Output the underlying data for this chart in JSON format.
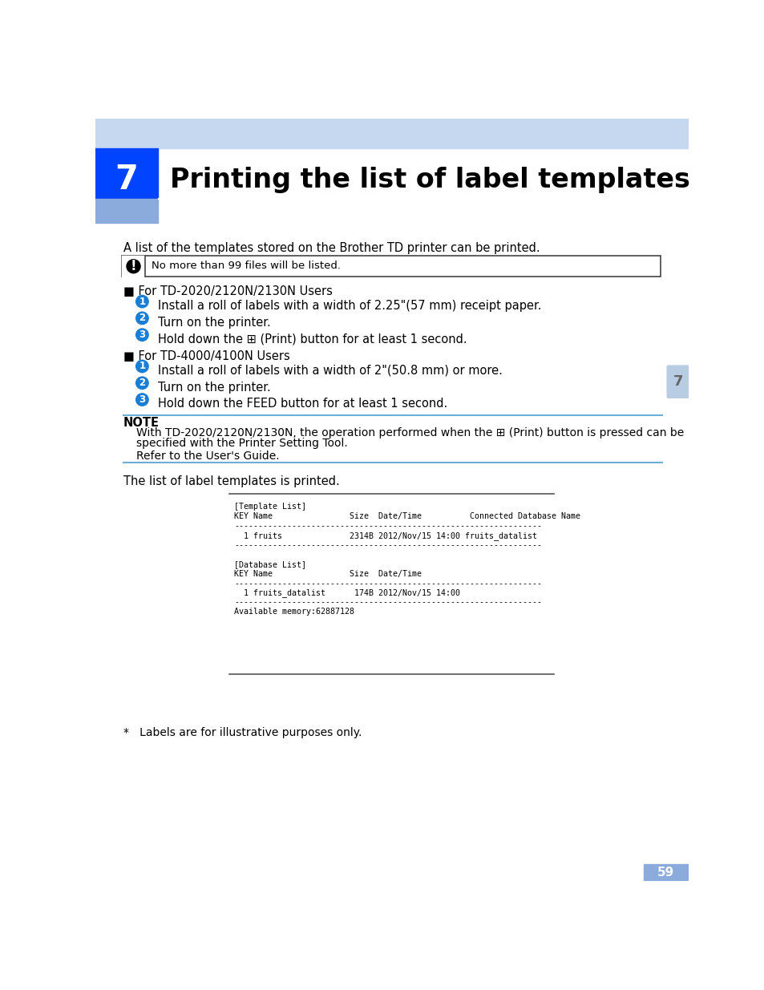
{
  "page_bg": "#ffffff",
  "header_bar_color": "#c5d8f0",
  "header_blue_square": "#0044ff",
  "header_light_square": "#8aabdb",
  "chapter_number": "7",
  "chapter_title": "Printing the list of label templates",
  "intro_text": "A list of the templates stored on the Brother TD printer can be printed.",
  "note_box_text": "No more than 99 files will be listed.",
  "section1_header": "■ For TD-2020/2120N/2130N Users",
  "section1_steps": [
    "Install a roll of labels with a width of 2.25\"(57 mm) receipt paper.",
    "Turn on the printer.",
    "Hold down the ⊞ (Print) button for at least 1 second."
  ],
  "section2_header": "■ For TD-4000/4100N Users",
  "section2_steps": [
    "Install a roll of labels with a width of 2\"(50.8 mm) or more.",
    "Turn on the printer.",
    "Hold down the FEED button for at least 1 second."
  ],
  "note_title": "NOTE",
  "note_text1a": "With TD-2020/2120N/2130N, the operation performed when the ⊞ (Print) button is pressed can be",
  "note_text1b": "specified with the Printer Setting Tool.",
  "note_text2": "Refer to the User's Guide.",
  "result_text": "The list of label templates is printed.",
  "terminal_lines": [
    "[Template List]",
    "KEY Name                Size  Date/Time          Connected Database Name",
    "----------------------------------------------------------------",
    "  1 fruits              2314B 2012/Nov/15 14:00 fruits_datalist",
    "----------------------------------------------------------------",
    "",
    "[Database List]",
    "KEY Name                Size  Date/Time",
    "----------------------------------------------------------------",
    "  1 fruits_datalist      174B 2012/Nov/15 14:00",
    "----------------------------------------------------------------",
    "Available memory:62887128"
  ],
  "footnote": "*   Labels are for illustrative purposes only.",
  "page_number": "59",
  "side_tab_color": "#b8cce4",
  "side_tab_number": "7",
  "blue_circle_color": "#1a7fd4",
  "note_line_color": "#6baed6"
}
